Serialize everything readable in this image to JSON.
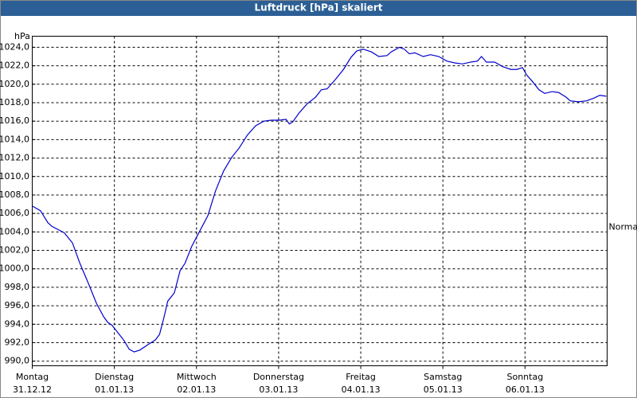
{
  "chart_data": {
    "type": "line",
    "title": "Luftdruck [hPa] skaliert",
    "y_label": "hPa",
    "color": "#0000cc",
    "grid": true,
    "xlim": [
      0,
      7
    ],
    "ylim": [
      989.5,
      1025.2
    ],
    "yticks": [
      {
        "value": 990,
        "label": "990,0"
      },
      {
        "value": 992,
        "label": "992,0"
      },
      {
        "value": 994,
        "label": "994,0"
      },
      {
        "value": 996,
        "label": "996,0"
      },
      {
        "value": 998,
        "label": "998,0"
      },
      {
        "value": 1000,
        "label": "1000,0"
      },
      {
        "value": 1002,
        "label": "1002,0"
      },
      {
        "value": 1004,
        "label": "1004,0"
      },
      {
        "value": 1006,
        "label": "1006,0"
      },
      {
        "value": 1008,
        "label": "1008,0"
      },
      {
        "value": 1010,
        "label": "1010,0"
      },
      {
        "value": 1012,
        "label": "1012,0"
      },
      {
        "value": 1014,
        "label": "1014,0"
      },
      {
        "value": 1016,
        "label": "1016,0"
      },
      {
        "value": 1018,
        "label": "1018,0"
      },
      {
        "value": 1020,
        "label": "1020,0"
      },
      {
        "value": 1022,
        "label": "1022,0"
      },
      {
        "value": 1024,
        "label": "1024,0"
      }
    ],
    "xticks": [
      {
        "value": 0,
        "label": "Montag",
        "date": "31.12.12"
      },
      {
        "value": 1,
        "label": "Dienstag",
        "date": "01.01.13"
      },
      {
        "value": 2,
        "label": "Mittwoch",
        "date": "02.01.13"
      },
      {
        "value": 3,
        "label": "Donnerstag",
        "date": "03.01.13"
      },
      {
        "value": 4,
        "label": "Freitag",
        "date": "04.01.13"
      },
      {
        "value": 5,
        "label": "Samstag",
        "date": "05.01.13"
      },
      {
        "value": 6,
        "label": "Sonntag",
        "date": "06.01.13"
      }
    ],
    "annotation": {
      "text": "Normal",
      "value": 1004.5
    },
    "x": [
      0,
      0.1,
      0.19,
      0.24,
      0.39,
      0.49,
      0.58,
      0.68,
      0.78,
      0.87,
      0.92,
      0.97,
      1.05,
      1.12,
      1.18,
      1.24,
      1.31,
      1.41,
      1.5,
      1.55,
      1.6,
      1.65,
      1.73,
      1.8,
      1.86,
      1.94,
      2.04,
      2.14,
      2.23,
      2.33,
      2.43,
      2.52,
      2.62,
      2.72,
      2.82,
      2.91,
      3.01,
      3.09,
      3.13,
      3.17,
      3.25,
      3.35,
      3.45,
      3.52,
      3.59,
      3.69,
      3.79,
      3.88,
      3.95,
      4.03,
      4.13,
      4.22,
      4.32,
      4.37,
      4.47,
      4.53,
      4.59,
      4.66,
      4.76,
      4.85,
      4.95,
      5.05,
      5.15,
      5.24,
      5.34,
      5.42,
      5.47,
      5.53,
      5.63,
      5.73,
      5.83,
      5.9,
      5.97,
      6.02,
      6.09,
      6.17,
      6.24,
      6.33,
      6.41,
      6.5,
      6.55,
      6.65,
      6.75,
      6.84,
      6.91,
      6.99
    ],
    "values": [
      1006.8,
      1006.3,
      1005.0,
      1004.6,
      1003.9,
      1002.8,
      1000.6,
      998.5,
      996.3,
      994.8,
      994.2,
      993.9,
      993.0,
      992.2,
      991.3,
      991.0,
      991.2,
      991.8,
      992.3,
      992.9,
      994.6,
      996.5,
      997.4,
      999.8,
      1000.6,
      1002.4,
      1004.1,
      1005.8,
      1008.4,
      1010.6,
      1012.1,
      1013.1,
      1014.5,
      1015.5,
      1016.0,
      1016.1,
      1016.1,
      1016.2,
      1015.7,
      1015.9,
      1016.9,
      1017.9,
      1018.6,
      1019.4,
      1019.5,
      1020.5,
      1021.6,
      1022.9,
      1023.6,
      1023.8,
      1023.5,
      1023.0,
      1023.1,
      1023.5,
      1024.0,
      1023.8,
      1023.3,
      1023.4,
      1023.0,
      1023.2,
      1023.0,
      1022.5,
      1022.3,
      1022.2,
      1022.4,
      1022.5,
      1023.0,
      1022.4,
      1022.4,
      1021.9,
      1021.6,
      1021.6,
      1021.8,
      1021.0,
      1020.3,
      1019.4,
      1019.0,
      1019.2,
      1019.1,
      1018.6,
      1018.2,
      1018.1,
      1018.2,
      1018.5,
      1018.8,
      1018.7
    ]
  }
}
